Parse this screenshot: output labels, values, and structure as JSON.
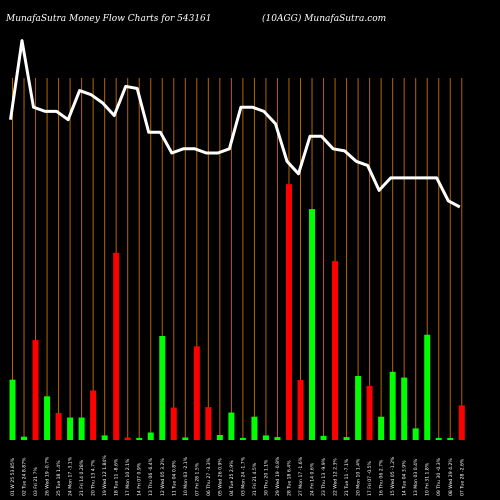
{
  "header": {
    "left_title": "MunafaSutra  Money Flow  Charts for 543161",
    "right_title": "(10AGG) MunafaSutra.com"
  },
  "chart_data": {
    "type": "bar",
    "title": "MunafaSutra  Money Flow  Charts for 543161",
    "subtitle": "(10AGG) MunafaSutra.com",
    "grid": "vertical",
    "colors": {
      "up": "#00ff00",
      "down": "#ff0000",
      "line": "#ffffff",
      "grid": "#b46400",
      "background": "#000000"
    },
    "categories": [
      "01 W 25 53.85%",
      "02 Tue 24 8.87%",
      "03 Fri 21 7%",
      "26 Wed 19 -0.7%",
      "25 Tue 18 1.4%",
      "24 Mon 17 -3.1%",
      "21 Fri 14 0.28%",
      "20 Thu 13 4.7%",
      "19 Wed 12 1.84%",
      "18 Tue 11 -8.6%",
      "17 Mon 10 2.1%",
      "14 Fri 07 0.9%",
      "13 Thu 06 -6.4%",
      "12 Wed 05 3.2%",
      "11 Tue 04 0.8%",
      "10 Mon 03 -2.1%",
      "07 Fri 28 1.5%",
      "06 Thu 27 -3.3%",
      "05 Wed 26 0.9%",
      "04 Tue 25 2.9%",
      "03 Mon 24 -1.7%",
      "31 Fri 21 4.5%",
      "30 Thu 20 1.1%",
      "29 Wed 19 -0.8%",
      "28 Tue 18 6.4%",
      "27 Mon 17 -1.6%",
      "24 Fri 14 0.6%",
      "23 Thu 13 -9.9%",
      "22 Wed 12 2.3%",
      "21 Tue 11 -7.1%",
      "20 Mon 10 1.4%",
      "17 Fri 07 -0.5%",
      "16 Thu 06 2.7%",
      "15 Wed 05 -1.2%",
      "14 Tue 04 3.9%",
      "13 Mon 03 0.4%",
      "10 Fri 31 1.8%",
      "09 Thu 30 -0.3%",
      "08 Wed 29 4.2%",
      "07 Tue 28 -2.6%"
    ],
    "series": [
      {
        "role": "bars",
        "values": [
          14.5,
          0.8,
          24.0,
          10.5,
          6.5,
          5.4,
          5.4,
          11.9,
          1.1,
          45.0,
          0.6,
          0.5,
          1.8,
          25.0,
          7.8,
          0.6,
          22.5,
          7.9,
          1.2,
          6.6,
          0.5,
          5.6,
          1.1,
          0.7,
          61.5,
          14.4,
          55.5,
          1.0,
          43.0,
          0.7,
          15.4,
          13.0,
          5.6,
          16.4,
          15.0,
          2.8,
          25.3,
          0.5,
          0.5,
          8.3
        ],
        "colors": [
          "green",
          "green",
          "red",
          "green",
          "red",
          "green",
          "green",
          "red",
          "green",
          "red",
          "red",
          "green",
          "green",
          "green",
          "red",
          "green",
          "red",
          "red",
          "green",
          "green",
          "green",
          "green",
          "green",
          "green",
          "red",
          "red",
          "green",
          "green",
          "red",
          "green",
          "green",
          "red",
          "green",
          "green",
          "green",
          "green",
          "green",
          "green",
          "green",
          "red"
        ]
      },
      {
        "role": "line",
        "values": [
          77.0,
          96.0,
          80.0,
          79.0,
          79.0,
          77.0,
          84.0,
          83.0,
          81.0,
          78.0,
          85.0,
          84.5,
          74.0,
          74.0,
          69.0,
          70.0,
          70.0,
          69.0,
          69.0,
          70.0,
          80.0,
          80.0,
          79.0,
          76.0,
          67.0,
          64.0,
          73.0,
          73.0,
          70.0,
          69.5,
          67.0,
          66.0,
          60.0,
          63.0,
          63.0,
          63.0,
          63.0,
          63.0,
          57.5,
          56.0
        ]
      }
    ],
    "ylim": [
      0,
      100
    ]
  }
}
